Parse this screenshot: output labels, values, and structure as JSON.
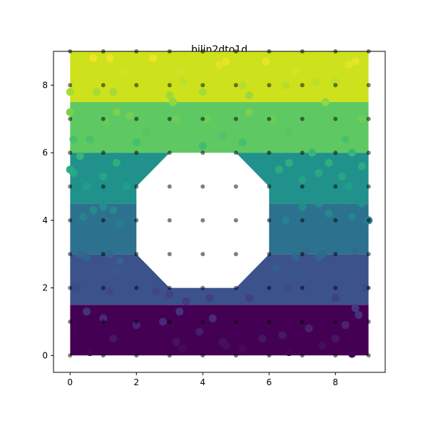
{
  "chart_data": {
    "type": "contour-scatter",
    "title": "bilin2dto1d",
    "xlabel": "",
    "ylabel": "",
    "xlim": [
      -0.5,
      9.5
    ],
    "ylim": [
      -0.5,
      9.0
    ],
    "xticks": [
      0,
      2,
      4,
      6,
      8
    ],
    "yticks": [
      0,
      2,
      4,
      6,
      8
    ],
    "grid": false,
    "colormap": "viridis",
    "value_range": [
      0,
      9
    ],
    "contour_bands": [
      {
        "y0": 0.0,
        "y1": 1.5,
        "color": "#440154"
      },
      {
        "y0": 1.5,
        "y1": 3.0,
        "color": "#3b528b"
      },
      {
        "y0": 3.0,
        "y1": 4.5,
        "color": "#2c728e"
      },
      {
        "y0": 4.5,
        "y1": 6.0,
        "color": "#21918c"
      },
      {
        "y0": 6.0,
        "y1": 7.5,
        "color": "#5ec962"
      },
      {
        "y0": 7.5,
        "y1": 9.0,
        "color": "#cde11d"
      }
    ],
    "contour_domain": {
      "x": [
        0,
        9
      ],
      "y": [
        0,
        9
      ]
    },
    "hole_polygon": [
      [
        3,
        2
      ],
      [
        5,
        2
      ],
      [
        6,
        3
      ],
      [
        6,
        5
      ],
      [
        5,
        6
      ],
      [
        3,
        6
      ],
      [
        2,
        5
      ],
      [
        2,
        3
      ]
    ],
    "grid_points": {
      "x": [
        0,
        1,
        2,
        3,
        4,
        5,
        6,
        7,
        8,
        9
      ],
      "y": [
        0,
        1,
        2,
        3,
        4,
        5,
        6,
        7,
        8,
        9
      ],
      "color": "#000000",
      "alpha": 0.5
    },
    "scatter_points": [
      [
        0.6,
        0.1
      ],
      [
        1.3,
        0.5
      ],
      [
        2.0,
        0.9
      ],
      [
        2.8,
        1.0
      ],
      [
        3.2,
        0.4
      ],
      [
        3.4,
        0.2
      ],
      [
        3.9,
        0.7
      ],
      [
        4.3,
        1.1
      ],
      [
        4.6,
        0.4
      ],
      [
        4.7,
        0.3
      ],
      [
        5.2,
        0.2
      ],
      [
        5.8,
        0.5
      ],
      [
        6.4,
        0.6
      ],
      [
        6.6,
        0.1
      ],
      [
        7.2,
        0.8
      ],
      [
        7.6,
        0.3
      ],
      [
        8.0,
        0.5
      ],
      [
        8.5,
        0.05
      ],
      [
        8.7,
        1.2
      ],
      [
        0.5,
        1.3
      ],
      [
        1.0,
        1.1
      ],
      [
        8.3,
        0.9
      ],
      [
        0.2,
        2.0
      ],
      [
        0.6,
        2.4
      ],
      [
        1.2,
        1.9
      ],
      [
        1.4,
        2.5
      ],
      [
        2.6,
        1.9
      ],
      [
        3.0,
        1.8
      ],
      [
        3.3,
        1.3
      ],
      [
        3.5,
        1.6
      ],
      [
        4.2,
        1.7
      ],
      [
        5.4,
        1.7
      ],
      [
        6.2,
        2.6
      ],
      [
        6.6,
        2.0
      ],
      [
        7.0,
        2.4
      ],
      [
        7.5,
        2.9
      ],
      [
        8.0,
        1.7
      ],
      [
        8.4,
        2.3
      ],
      [
        8.6,
        1.4
      ],
      [
        8.9,
        2.0
      ],
      [
        0.3,
        3.0
      ],
      [
        0.5,
        2.9
      ],
      [
        1.2,
        3.0
      ],
      [
        1.5,
        2.8
      ],
      [
        1.6,
        3.3
      ],
      [
        6.4,
        3.4
      ],
      [
        6.8,
        2.9
      ],
      [
        7.1,
        3.1
      ],
      [
        7.3,
        3.4
      ],
      [
        7.6,
        3.0
      ],
      [
        8.3,
        3.3
      ],
      [
        8.6,
        3.1
      ],
      [
        0.4,
        4.1
      ],
      [
        0.7,
        4.3
      ],
      [
        1.0,
        4.4
      ],
      [
        1.3,
        4.3
      ],
      [
        1.5,
        3.9
      ],
      [
        6.5,
        4.0
      ],
      [
        7.0,
        4.4
      ],
      [
        7.5,
        4.5
      ],
      [
        7.8,
        4.2
      ],
      [
        8.1,
        4.6
      ],
      [
        8.5,
        4.1
      ],
      [
        9.0,
        4.0
      ],
      [
        8.8,
        4.5
      ],
      [
        0.1,
        5.4
      ],
      [
        0.3,
        5.9
      ],
      [
        0.5,
        5.0
      ],
      [
        1.0,
        5.3
      ],
      [
        1.4,
        5.7
      ],
      [
        1.7,
        5.0
      ],
      [
        4.0,
        6.2
      ],
      [
        6.3,
        5.5
      ],
      [
        6.6,
        5.7
      ],
      [
        7.0,
        5.2
      ],
      [
        7.5,
        5.4
      ],
      [
        7.8,
        5.7
      ],
      [
        8.2,
        5.3
      ],
      [
        8.4,
        5.0
      ],
      [
        8.8,
        5.6
      ],
      [
        0.0,
        5.5
      ],
      [
        0.1,
        6.4
      ],
      [
        0.6,
        6.4
      ],
      [
        1.1,
        6.9
      ],
      [
        1.4,
        7.2
      ],
      [
        1.8,
        7.1
      ],
      [
        2.0,
        6.3
      ],
      [
        2.3,
        6.6
      ],
      [
        3.1,
        7.5
      ],
      [
        3.2,
        7.0
      ],
      [
        4.1,
        7.0
      ],
      [
        4.3,
        6.8
      ],
      [
        4.6,
        6.5
      ],
      [
        5.2,
        6.3
      ],
      [
        5.4,
        7.2
      ],
      [
        6.1,
        7.0
      ],
      [
        6.6,
        6.6
      ],
      [
        7.3,
        6.0
      ],
      [
        7.7,
        7.5
      ],
      [
        8.3,
        6.4
      ],
      [
        8.5,
        6.0
      ],
      [
        8.8,
        7.0
      ],
      [
        0.0,
        7.2
      ],
      [
        0.0,
        7.8
      ],
      [
        0.7,
        8.8
      ],
      [
        1.2,
        8.8
      ],
      [
        1.6,
        8.4
      ],
      [
        2.5,
        8.8
      ],
      [
        3.3,
        8.4
      ],
      [
        3.4,
        8.1
      ],
      [
        4.0,
        7.8
      ],
      [
        4.5,
        8.6
      ],
      [
        4.7,
        8.7
      ],
      [
        5.2,
        8.0
      ],
      [
        5.4,
        7.7
      ],
      [
        5.9,
        8.7
      ],
      [
        6.5,
        8.0
      ],
      [
        6.8,
        8.4
      ],
      [
        7.4,
        8.1
      ],
      [
        8.0,
        8.1
      ],
      [
        8.4,
        8.6
      ],
      [
        8.6,
        8.7
      ],
      [
        0.8,
        7.8
      ],
      [
        1.3,
        7.8
      ],
      [
        3.0,
        7.7
      ]
    ]
  }
}
